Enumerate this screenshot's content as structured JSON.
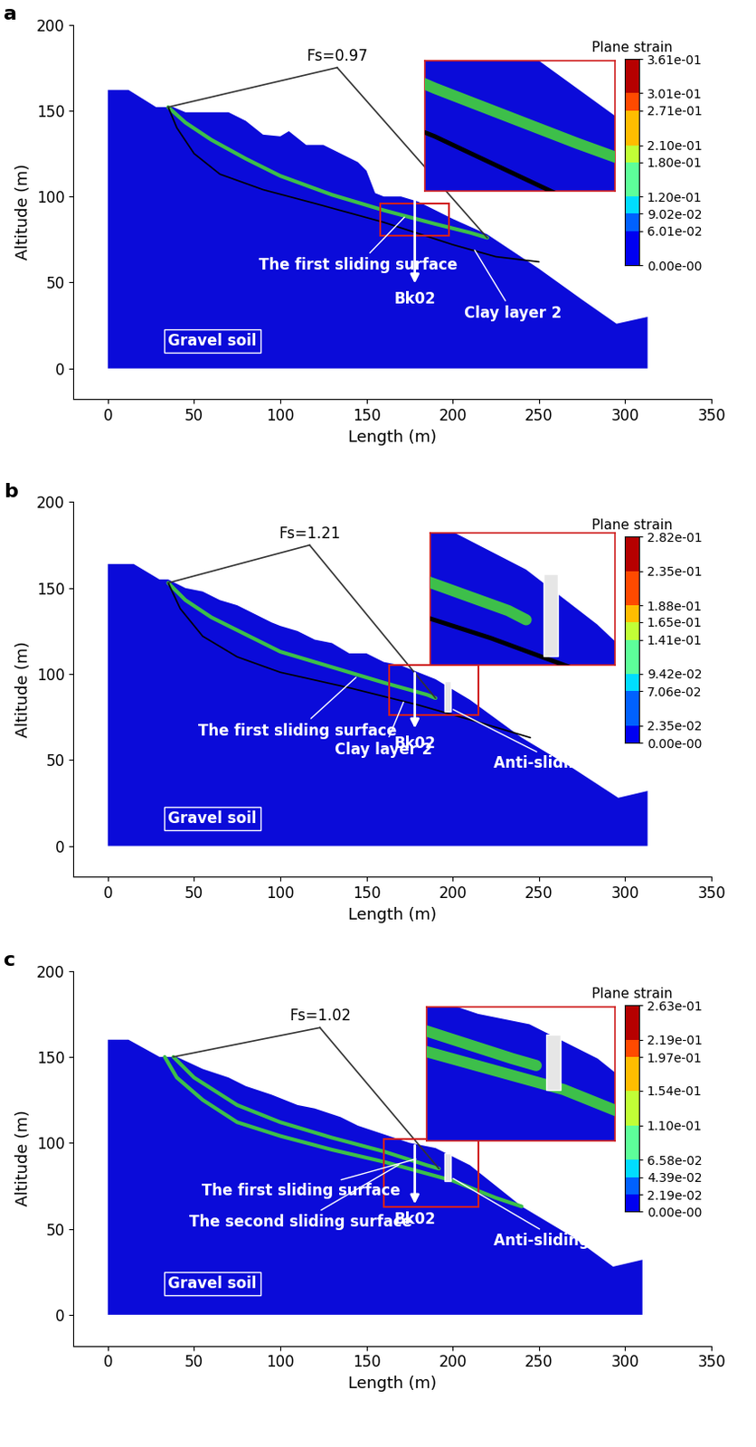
{
  "chart_data": [
    {
      "type": "area",
      "panel": "a",
      "xlabel": "Length (m)",
      "ylabel": "Altitude (m)",
      "xlim": [
        -20,
        350
      ],
      "ylim": [
        -18,
        200
      ],
      "xticks": [
        0,
        50,
        100,
        150,
        200,
        250,
        300,
        350
      ],
      "yticks": [
        0,
        50,
        100,
        150,
        200
      ],
      "color": "#0b0bd9",
      "ground": {
        "x": [
          0,
          12,
          28,
          38,
          45,
          55,
          70,
          80,
          90,
          100,
          105,
          115,
          125,
          135,
          145,
          150,
          155,
          160,
          170,
          180,
          200,
          220,
          250,
          275,
          295,
          313,
          313,
          0
        ],
        "y": [
          162,
          162,
          152,
          152,
          149,
          149,
          149,
          144,
          136,
          135,
          138,
          130,
          130,
          125,
          120,
          115,
          102,
          100,
          100,
          97,
          87,
          78,
          58,
          40,
          26,
          30,
          0,
          0
        ]
      },
      "series": [
        {
          "name": "The first sliding surface",
          "color": "#3dbf4a",
          "x": [
            35,
            45,
            60,
            80,
            100,
            130,
            160,
            190,
            210,
            220
          ],
          "y": [
            152,
            143,
            133,
            122,
            112,
            101,
            92,
            84,
            79,
            76
          ]
        },
        {
          "name": "Clay layer 2",
          "color": "#000000",
          "x": [
            35,
            40,
            50,
            65,
            90,
            120,
            160,
            200,
            225,
            250
          ],
          "y": [
            152,
            140,
            125,
            113,
            104,
            96,
            85,
            72,
            65,
            62
          ]
        }
      ],
      "factor_of_safety": "Fs=0.97",
      "borehole": {
        "name": "Bk02",
        "x": 178,
        "y": [
          100,
          48
        ]
      },
      "zoom": {
        "xlim": [
          158,
          198
        ],
        "ylim": [
          77,
          96
        ]
      },
      "annotations": [
        "Gravel soil"
      ],
      "colorbar": {
        "title": "Plane strain",
        "ticks": [
          {
            "value": 0.361,
            "label": "3.61e-01"
          },
          {
            "value": 0.301,
            "label": "3.01e-01"
          },
          {
            "value": 0.271,
            "label": "2.71e-01"
          },
          {
            "value": 0.21,
            "label": "2.10e-01"
          },
          {
            "value": 0.18,
            "label": "1.80e-01"
          },
          {
            "value": 0.12,
            "label": "1.20e-01"
          },
          {
            "value": 0.0902,
            "label": "9.02e-02"
          },
          {
            "value": 0.0601,
            "label": "6.01e-02"
          },
          {
            "value": 0,
            "label": "0.00e-00"
          }
        ]
      }
    },
    {
      "type": "area",
      "panel": "b",
      "xlabel": "Length (m)",
      "ylabel": "Altitude (m)",
      "xlim": [
        -20,
        350
      ],
      "ylim": [
        -18,
        200
      ],
      "xticks": [
        0,
        50,
        100,
        150,
        200,
        250,
        300,
        350
      ],
      "yticks": [
        0,
        50,
        100,
        150,
        200
      ],
      "color": "#0b0bd9",
      "ground": {
        "x": [
          0,
          15,
          30,
          35,
          45,
          55,
          65,
          75,
          85,
          95,
          100,
          110,
          120,
          130,
          140,
          150,
          160,
          170,
          190,
          210,
          240,
          270,
          296,
          313,
          313,
          0
        ],
        "y": [
          164,
          164,
          155,
          155,
          150,
          148,
          143,
          140,
          135,
          130,
          128,
          125,
          120,
          118,
          112,
          112,
          107,
          105,
          97,
          85,
          63,
          45,
          28,
          32,
          0,
          0
        ]
      },
      "series": [
        {
          "name": "The first sliding surface",
          "color": "#3dbf4a",
          "x": [
            35,
            45,
            60,
            80,
            100,
            130,
            160,
            185,
            190
          ],
          "y": [
            153,
            143,
            133,
            123,
            113,
            104,
            95,
            88,
            86
          ]
        },
        {
          "name": "Clay layer 2",
          "color": "#000000",
          "x": [
            35,
            42,
            55,
            75,
            100,
            140,
            180,
            215,
            245
          ],
          "y": [
            153,
            138,
            122,
            110,
            101,
            92,
            82,
            72,
            63
          ]
        }
      ],
      "factor_of_safety": "Fs=1.21",
      "borehole": {
        "name": "Bk02",
        "x": 178,
        "y": [
          102,
          67
        ]
      },
      "pile": {
        "name": "Anti-sliding pile",
        "x": [
          195,
          199
        ],
        "y": [
          78,
          96
        ]
      },
      "zoom": {
        "xlim": [
          163,
          215
        ],
        "ylim": [
          76,
          105
        ]
      },
      "annotations": [
        "Gravel soil"
      ],
      "colorbar": {
        "title": "Plane strain",
        "ticks": [
          {
            "value": 0.282,
            "label": "2.82e-01"
          },
          {
            "value": 0.235,
            "label": "2.35e-01"
          },
          {
            "value": 0.188,
            "label": "1.88e-01"
          },
          {
            "value": 0.165,
            "label": "1.65e-01"
          },
          {
            "value": 0.141,
            "label": "1.41e-01"
          },
          {
            "value": 0.0942,
            "label": "9.42e-02"
          },
          {
            "value": 0.0706,
            "label": "7.06e-02"
          },
          {
            "value": 0.0235,
            "label": "2.35e-02"
          },
          {
            "value": 0,
            "label": "0.00e-00"
          }
        ]
      }
    },
    {
      "type": "area",
      "panel": "c",
      "xlabel": "Length (m)",
      "ylabel": "Altitude (m)",
      "xlim": [
        -20,
        350
      ],
      "ylim": [
        -18,
        200
      ],
      "xticks": [
        0,
        50,
        100,
        150,
        200,
        250,
        300,
        350
      ],
      "yticks": [
        0,
        50,
        100,
        150,
        200
      ],
      "color": "#0b0bd9",
      "ground": {
        "x": [
          0,
          12,
          30,
          40,
          55,
          70,
          80,
          95,
          110,
          120,
          135,
          145,
          160,
          175,
          190,
          210,
          240,
          270,
          293,
          310,
          310,
          0
        ],
        "y": [
          160,
          160,
          150,
          150,
          143,
          138,
          133,
          128,
          122,
          120,
          115,
          110,
          105,
          100,
          97,
          87,
          63,
          45,
          28,
          32,
          0,
          0
        ]
      },
      "series": [
        {
          "name": "The first sliding surface",
          "color": "#3dbf4a",
          "x": [
            38,
            50,
            75,
            100,
            130,
            160,
            185,
            192
          ],
          "y": [
            150,
            138,
            122,
            112,
            103,
            95,
            87,
            85
          ]
        },
        {
          "name": "The second sliding surface",
          "color": "#3dbf4a",
          "x": [
            33,
            40,
            55,
            75,
            100,
            130,
            160,
            200,
            225,
            240
          ],
          "y": [
            150,
            138,
            125,
            112,
            104,
            96,
            89,
            78,
            68,
            63
          ]
        }
      ],
      "factor_of_safety": "Fs=1.02",
      "borehole": {
        "name": "Bk02",
        "x": 178,
        "y": [
          100,
          63
        ]
      },
      "pile": {
        "name": "Anti-sliding pile",
        "x": [
          195,
          199
        ],
        "y": [
          78,
          94
        ]
      },
      "zoom": {
        "xlim": [
          160,
          215
        ],
        "ylim": [
          63,
          102
        ]
      },
      "annotations": [
        "Gravel soil"
      ],
      "colorbar": {
        "title": "Plane strain",
        "ticks": [
          {
            "value": 0.263,
            "label": "2.63e-01"
          },
          {
            "value": 0.219,
            "label": "2.19e-01"
          },
          {
            "value": 0.197,
            "label": "1.97e-01"
          },
          {
            "value": 0.154,
            "label": "1.54e-01"
          },
          {
            "value": 0.11,
            "label": "1.10e-01"
          },
          {
            "value": 0.0658,
            "label": "6.58e-02"
          },
          {
            "value": 0.0439,
            "label": "4.39e-02"
          },
          {
            "value": 0.0219,
            "label": "2.19e-02"
          },
          {
            "value": 0,
            "label": "0.00e-00"
          }
        ]
      }
    }
  ]
}
